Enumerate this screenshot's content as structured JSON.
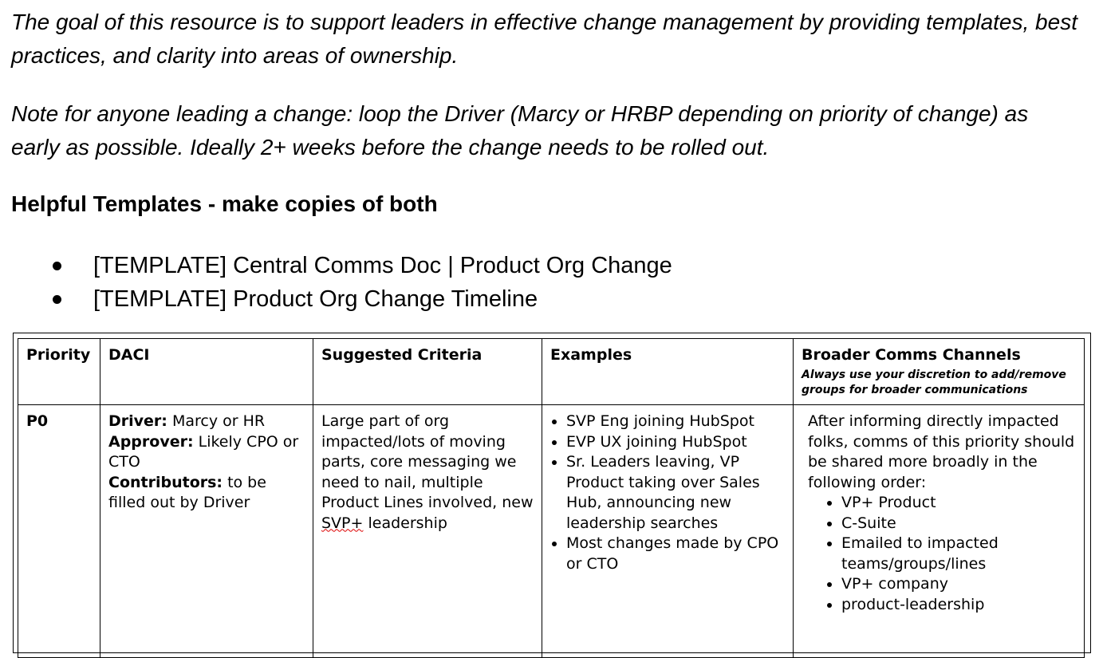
{
  "intro": {
    "goal": "The goal of this resource is to support leaders in effective change management by providing templates, best practices, and clarity into areas of ownership.",
    "note": "Note for anyone leading a change: loop the Driver (Marcy or HRBP depending on priority of change) as early as possible. Ideally 2+ weeks before the change needs to be rolled out."
  },
  "templates": {
    "heading": "Helpful Templates - make copies of both",
    "items": [
      "[TEMPLATE] Central Comms Doc | Product Org Change",
      "[TEMPLATE] Product Org Change Timeline"
    ]
  },
  "table": {
    "headers": {
      "priority": "Priority",
      "daci": "DACI",
      "criteria": "Suggested Criteria",
      "examples": "Examples",
      "channels": "Broader Comms Channels",
      "channels_note": "Always use your discretion to add/remove groups for broader communications"
    },
    "rows": [
      {
        "priority": "P0",
        "daci": {
          "driver_label": "Driver:",
          "driver": " Marcy or HR",
          "approver_label": "Approver:",
          "approver": " Likely CPO or CTO",
          "contributors_label": "Contributors:",
          "contributors": " to be filled out by Driver"
        },
        "criteria": "Large part of org impacted/lots of moving parts, core messaging we need to nail, multiple Product Lines involved, new ",
        "criteria_flagged": "SVP+",
        "criteria_end": " leadership",
        "examples": [
          "SVP Eng joining HubSpot",
          "EVP UX joining HubSpot",
          "Sr. Leaders leaving, VP Product taking over Sales Hub, announcing new leadership searches",
          "Most changes made by CPO or CTO"
        ],
        "channels_intro": "After informing directly impacted folks, comms of this priority should be shared more broadly in the following order:",
        "channels": [
          "VP+ Product",
          "C-Suite",
          "Emailed to impacted teams/groups/lines",
          "VP+ company",
          "product-leadership"
        ]
      }
    ]
  }
}
